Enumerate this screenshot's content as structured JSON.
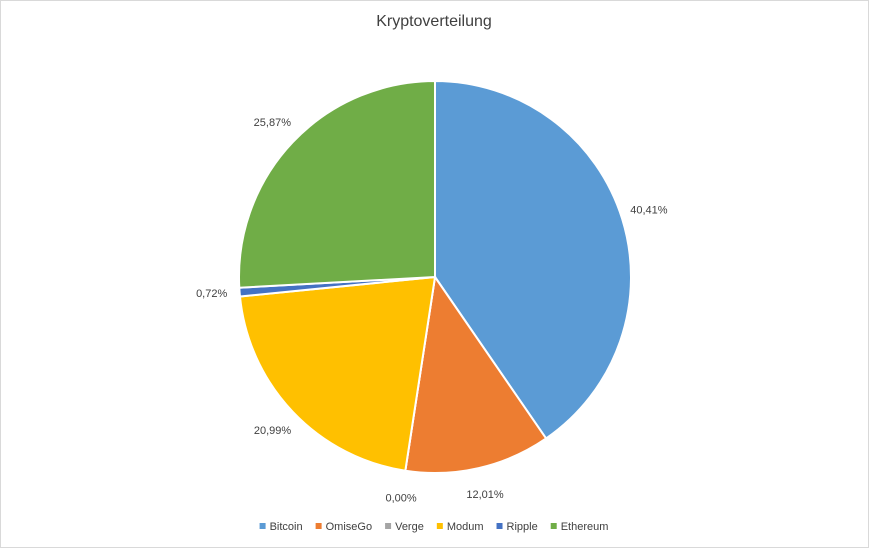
{
  "chart_data": {
    "type": "pie",
    "title": "Kryptoverteilung",
    "categories": [
      "Bitcoin",
      "OmiseGo",
      "Verge",
      "Modum",
      "Ripple",
      "Ethereum"
    ],
    "values": [
      40.41,
      12.01,
      0.0,
      20.99,
      0.72,
      25.87
    ],
    "value_labels": [
      "40,41%",
      "12,01%",
      "0,00%",
      "20,99%",
      "0,72%",
      "25,87%"
    ],
    "colors": [
      "#5b9bd5",
      "#ed7d31",
      "#a5a5a5",
      "#ffc000",
      "#4472c4",
      "#70ad47"
    ],
    "legend": "bottom"
  }
}
